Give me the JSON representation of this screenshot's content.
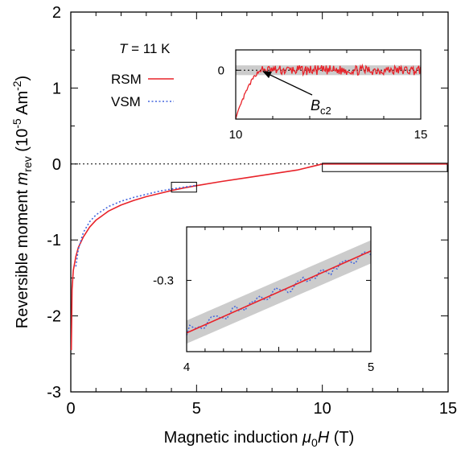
{
  "chart_data": {
    "type": "line",
    "xlabel": "Magnetic induction μ0H (T)",
    "ylabel": "Reversible moment m_rev (10^-5 Am^-2)",
    "xlabel_parts": {
      "pre": "Magnetic induction ",
      "mu": "μ",
      "sub": "0",
      "var": "H",
      "post": " (T)"
    },
    "ylabel_parts": {
      "pre": "Reversible moment ",
      "var": "m",
      "sub": "rev",
      "unit_pre": " (10",
      "exp1": "-5",
      "unit_mid": " Am",
      "exp2": "-2",
      "unit_post": ")"
    },
    "xlim": [
      0,
      15
    ],
    "ylim": [
      -3,
      2
    ],
    "x_ticks": [
      "0",
      "5",
      "10",
      "15"
    ],
    "y_ticks": [
      "-3",
      "-2",
      "-1",
      "0",
      "1",
      "2"
    ],
    "annotation": {
      "T_var": "T",
      "T_value": " = 11 K"
    },
    "zero_line": "dotted",
    "series": [
      {
        "name": "RSM",
        "color": "#e8232a",
        "style": "solid",
        "points": [
          [
            0.02,
            -2.45
          ],
          [
            0.05,
            -1.65
          ],
          [
            0.1,
            -1.4
          ],
          [
            0.2,
            -1.22
          ],
          [
            0.3,
            -1.1
          ],
          [
            0.5,
            -0.96
          ],
          [
            0.75,
            -0.83
          ],
          [
            1.0,
            -0.74
          ],
          [
            1.5,
            -0.62
          ],
          [
            2.0,
            -0.54
          ],
          [
            2.5,
            -0.48
          ],
          [
            3.0,
            -0.43
          ],
          [
            3.5,
            -0.39
          ],
          [
            4.0,
            -0.35
          ],
          [
            4.5,
            -0.315
          ],
          [
            5.0,
            -0.285
          ],
          [
            6.0,
            -0.23
          ],
          [
            7.0,
            -0.18
          ],
          [
            8.0,
            -0.13
          ],
          [
            9.0,
            -0.08
          ],
          [
            9.5,
            -0.04
          ],
          [
            10.0,
            0.0
          ],
          [
            15.0,
            0.0
          ]
        ]
      },
      {
        "name": "VSM",
        "color": "#4466dd",
        "style": "dotted",
        "points": [
          [
            0.2,
            -1.35
          ],
          [
            0.3,
            -1.12
          ],
          [
            0.5,
            -0.9
          ],
          [
            0.75,
            -0.76
          ],
          [
            1.0,
            -0.67
          ],
          [
            1.5,
            -0.56
          ],
          [
            2.0,
            -0.49
          ],
          [
            2.5,
            -0.44
          ],
          [
            3.0,
            -0.4
          ],
          [
            3.5,
            -0.36
          ],
          [
            4.0,
            -0.33
          ],
          [
            4.5,
            -0.305
          ],
          [
            5.0,
            -0.28
          ]
        ]
      }
    ],
    "inset_low": {
      "xlim": [
        4,
        5
      ],
      "ylim": [
        -0.34,
        -0.27
      ],
      "x_ticks": [
        "4",
        "5"
      ],
      "y_ticks": [
        "-0.3"
      ],
      "band": {
        "center_at_4": -0.329,
        "center_at_5": -0.284,
        "halfwidth": 0.0065,
        "color": "#cccccc"
      },
      "rsm_line": [
        [
          4.0,
          -0.3295
        ],
        [
          5.0,
          -0.2835
        ]
      ],
      "vsm_wiggle": {
        "amplitude": 0.0025,
        "noise_seed": 7
      }
    },
    "inset_high": {
      "xlim": [
        10,
        15
      ],
      "ylim": [
        -0.012,
        0.005
      ],
      "x_ticks": [
        "10",
        "15"
      ],
      "y_ticks": [
        "0"
      ],
      "band_halfwidth": 0.0012,
      "band_color": "#cccccc",
      "Bc2_label": {
        "var": "B",
        "sub": "c2"
      },
      "Bc2_x": 10.72
    },
    "zoom_boxes": [
      "rect-4-5",
      "rect-10-15"
    ]
  }
}
